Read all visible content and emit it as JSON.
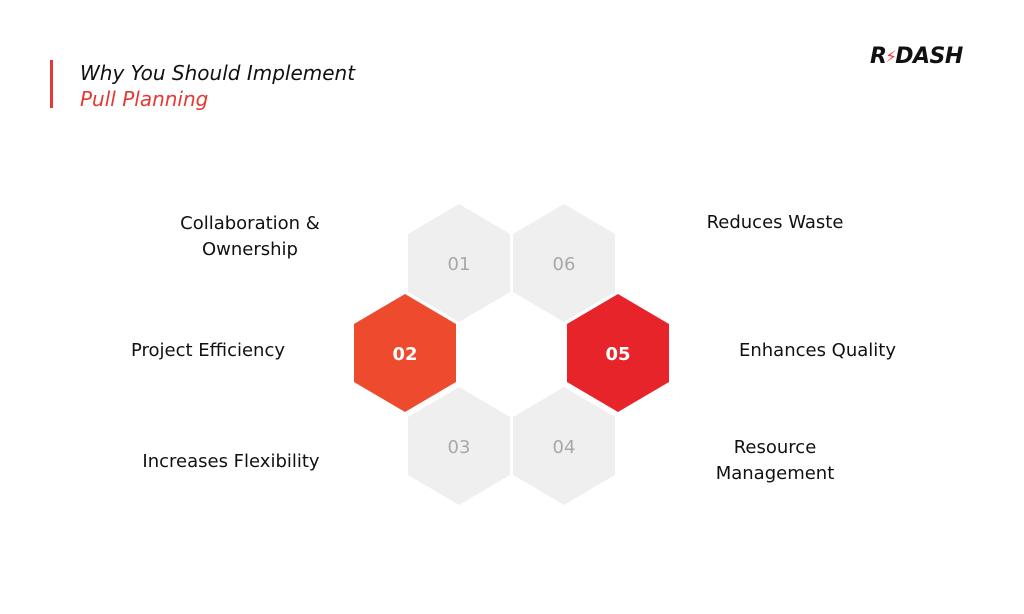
{
  "header": {
    "title_line1": "Why You Should Implement",
    "title_line2": "Pull Planning"
  },
  "logo": {
    "part1": "R",
    "part2": "DASH",
    "bolt_icon": "bolt-icon"
  },
  "colors": {
    "accent": "#e53935",
    "accent_light": "#ed4a2e",
    "hex_inactive": "#efefef",
    "number_inactive": "#a8a8a8"
  },
  "items": [
    {
      "number": "01",
      "label": "Collaboration & Ownership",
      "highlighted": false
    },
    {
      "number": "02",
      "label": "Project Efficiency",
      "highlighted": true
    },
    {
      "number": "03",
      "label": "Increases Flexibility",
      "highlighted": false
    },
    {
      "number": "04",
      "label": "Resource Management",
      "highlighted": false
    },
    {
      "number": "05",
      "label": "Enhances Quality",
      "highlighted": true
    },
    {
      "number": "06",
      "label": "Reduces Waste",
      "highlighted": false
    }
  ]
}
